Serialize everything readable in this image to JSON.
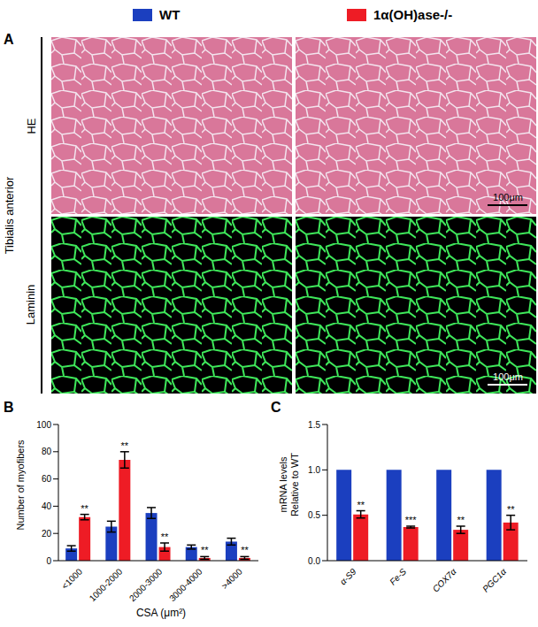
{
  "panel_a": {
    "label": "A",
    "muscle": "Tibialis anterior",
    "rows": [
      "HE",
      "Laminin"
    ],
    "scale_bar": "100μm"
  },
  "chart_data": [
    {
      "panel_label": "B",
      "type": "bar",
      "categories": [
        "<1000",
        "1000-2000",
        "2000-3000",
        "3000-4000",
        ">4000"
      ],
      "y_label": [
        "Number of myofibers"
      ],
      "x_label": "CSA (μm²)",
      "ylim": [
        0,
        100
      ],
      "yticks": [
        0,
        20,
        40,
        60,
        80,
        100
      ],
      "series": [
        {
          "name": "WT",
          "color": "#1b3fbf",
          "values": [
            9,
            25,
            35,
            10,
            14
          ],
          "errors": [
            2,
            4,
            4,
            1.5,
            2.5
          ]
        },
        {
          "name": "1α(OH)ase-/-",
          "color": "#ee1c25",
          "values": [
            32,
            74,
            10,
            2,
            2
          ],
          "errors": [
            2,
            6,
            3,
            1,
            1
          ],
          "significance": [
            "**",
            "**",
            "**",
            "**",
            "**"
          ]
        }
      ]
    },
    {
      "panel_label": "C",
      "type": "bar",
      "categories": [
        "α-S9",
        "Fe-S",
        "COX7α",
        "PGC1α"
      ],
      "y_label": [
        "mRNA levels",
        "Relative to WT"
      ],
      "ylim": [
        0,
        1.5
      ],
      "yticks": [
        {
          "value": 0,
          "label": "0.0"
        },
        {
          "value": 0.5,
          "label": "0.5"
        },
        {
          "value": 1,
          "label": "1.0"
        },
        {
          "value": 1.5,
          "label": "1.5"
        }
      ],
      "series": [
        {
          "name": "WT",
          "color": "#1b3fbf",
          "values": [
            1,
            1,
            1,
            1
          ]
        },
        {
          "name": "1α(OH)ase-/-",
          "color": "#ee1c25",
          "values": [
            0.51,
            0.37,
            0.34,
            0.42
          ],
          "errors": [
            0.04,
            0.01,
            0.04,
            0.08
          ],
          "significance": [
            "**",
            "***",
            "**",
            "**"
          ]
        }
      ]
    }
  ]
}
